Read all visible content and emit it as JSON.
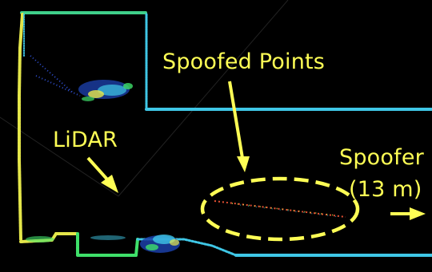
{
  "labels": {
    "spoofed_points": "Spoofed Points",
    "lidar": "LiDAR",
    "spoofer": "Spoofer",
    "spoofer_distance": "(13 m)"
  },
  "colors": {
    "background": "#000000",
    "annotation": "#ffff55",
    "wall_cyan": "#3fc7e6",
    "wall_green": "#3fe06a",
    "wall_yellow": "#e8e84a",
    "spoofed_red": "#ff5a3a"
  }
}
